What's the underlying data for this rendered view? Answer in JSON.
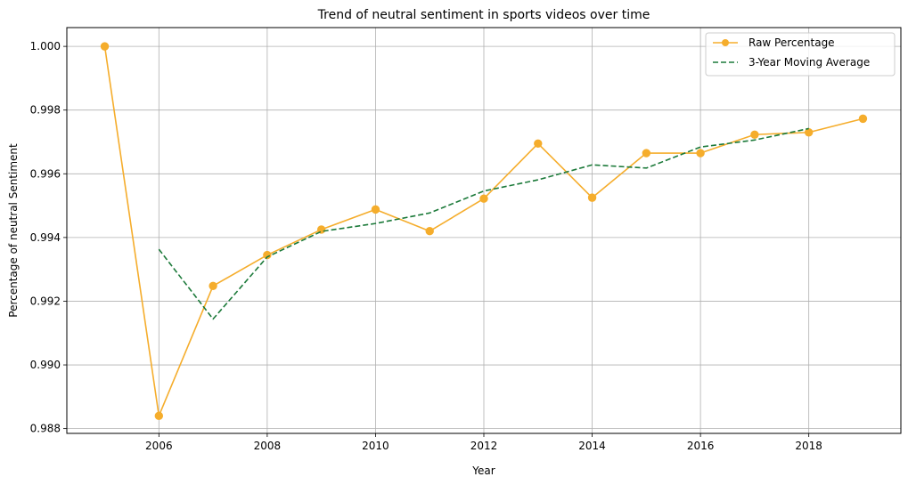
{
  "chart_data": {
    "type": "line",
    "title": "Trend of neutral sentiment in sports videos over time",
    "xlabel": "Year",
    "ylabel": "Percentage of neutral Sentiment",
    "xlim": [
      2004.3,
      2019.7
    ],
    "ylim": [
      0.98785,
      1.00059
    ],
    "xticks": [
      2006,
      2008,
      2010,
      2012,
      2014,
      2016,
      2018
    ],
    "yticks": [
      0.988,
      0.99,
      0.992,
      0.994,
      0.996,
      0.998,
      1.0
    ],
    "ytick_labels": [
      "0.988",
      "0.990",
      "0.992",
      "0.994",
      "0.996",
      "0.998",
      "1.000"
    ],
    "grid": true,
    "legend_position": "top-right",
    "series": [
      {
        "name": "Raw Percentage",
        "color": "#f5ad2c",
        "style": "solid-with-circle-markers",
        "x": [
          2005,
          2006,
          2007,
          2008,
          2009,
          2010,
          2011,
          2012,
          2013,
          2014,
          2015,
          2016,
          2017,
          2018,
          2019
        ],
        "values": [
          1.0,
          0.9884,
          0.99248,
          0.99345,
          0.99425,
          0.99488,
          0.9942,
          0.99522,
          0.99695,
          0.99525,
          0.99665,
          0.99665,
          0.99723,
          0.9973,
          0.99773
        ]
      },
      {
        "name": "3-Year Moving Average",
        "color": "#1c7a3a",
        "style": "dashed",
        "x": [
          2006,
          2007,
          2008,
          2009,
          2010,
          2011,
          2012,
          2013,
          2014,
          2015,
          2016,
          2017,
          2018
        ],
        "values": [
          0.99363,
          0.99144,
          0.99339,
          0.99419,
          0.99444,
          0.99477,
          0.99546,
          0.99581,
          0.99628,
          0.99618,
          0.99684,
          0.99706,
          0.99742
        ]
      }
    ]
  }
}
